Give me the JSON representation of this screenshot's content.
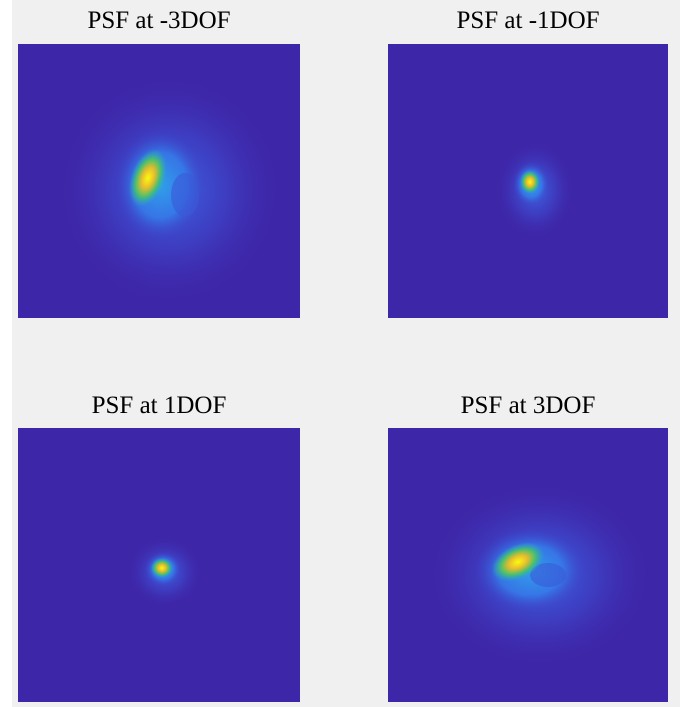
{
  "panels": [
    {
      "title": "PSF at -3DOF"
    },
    {
      "title": "PSF at -1DOF"
    },
    {
      "title": "PSF at 1DOF"
    },
    {
      "title": "PSF at 3DOF"
    }
  ]
}
